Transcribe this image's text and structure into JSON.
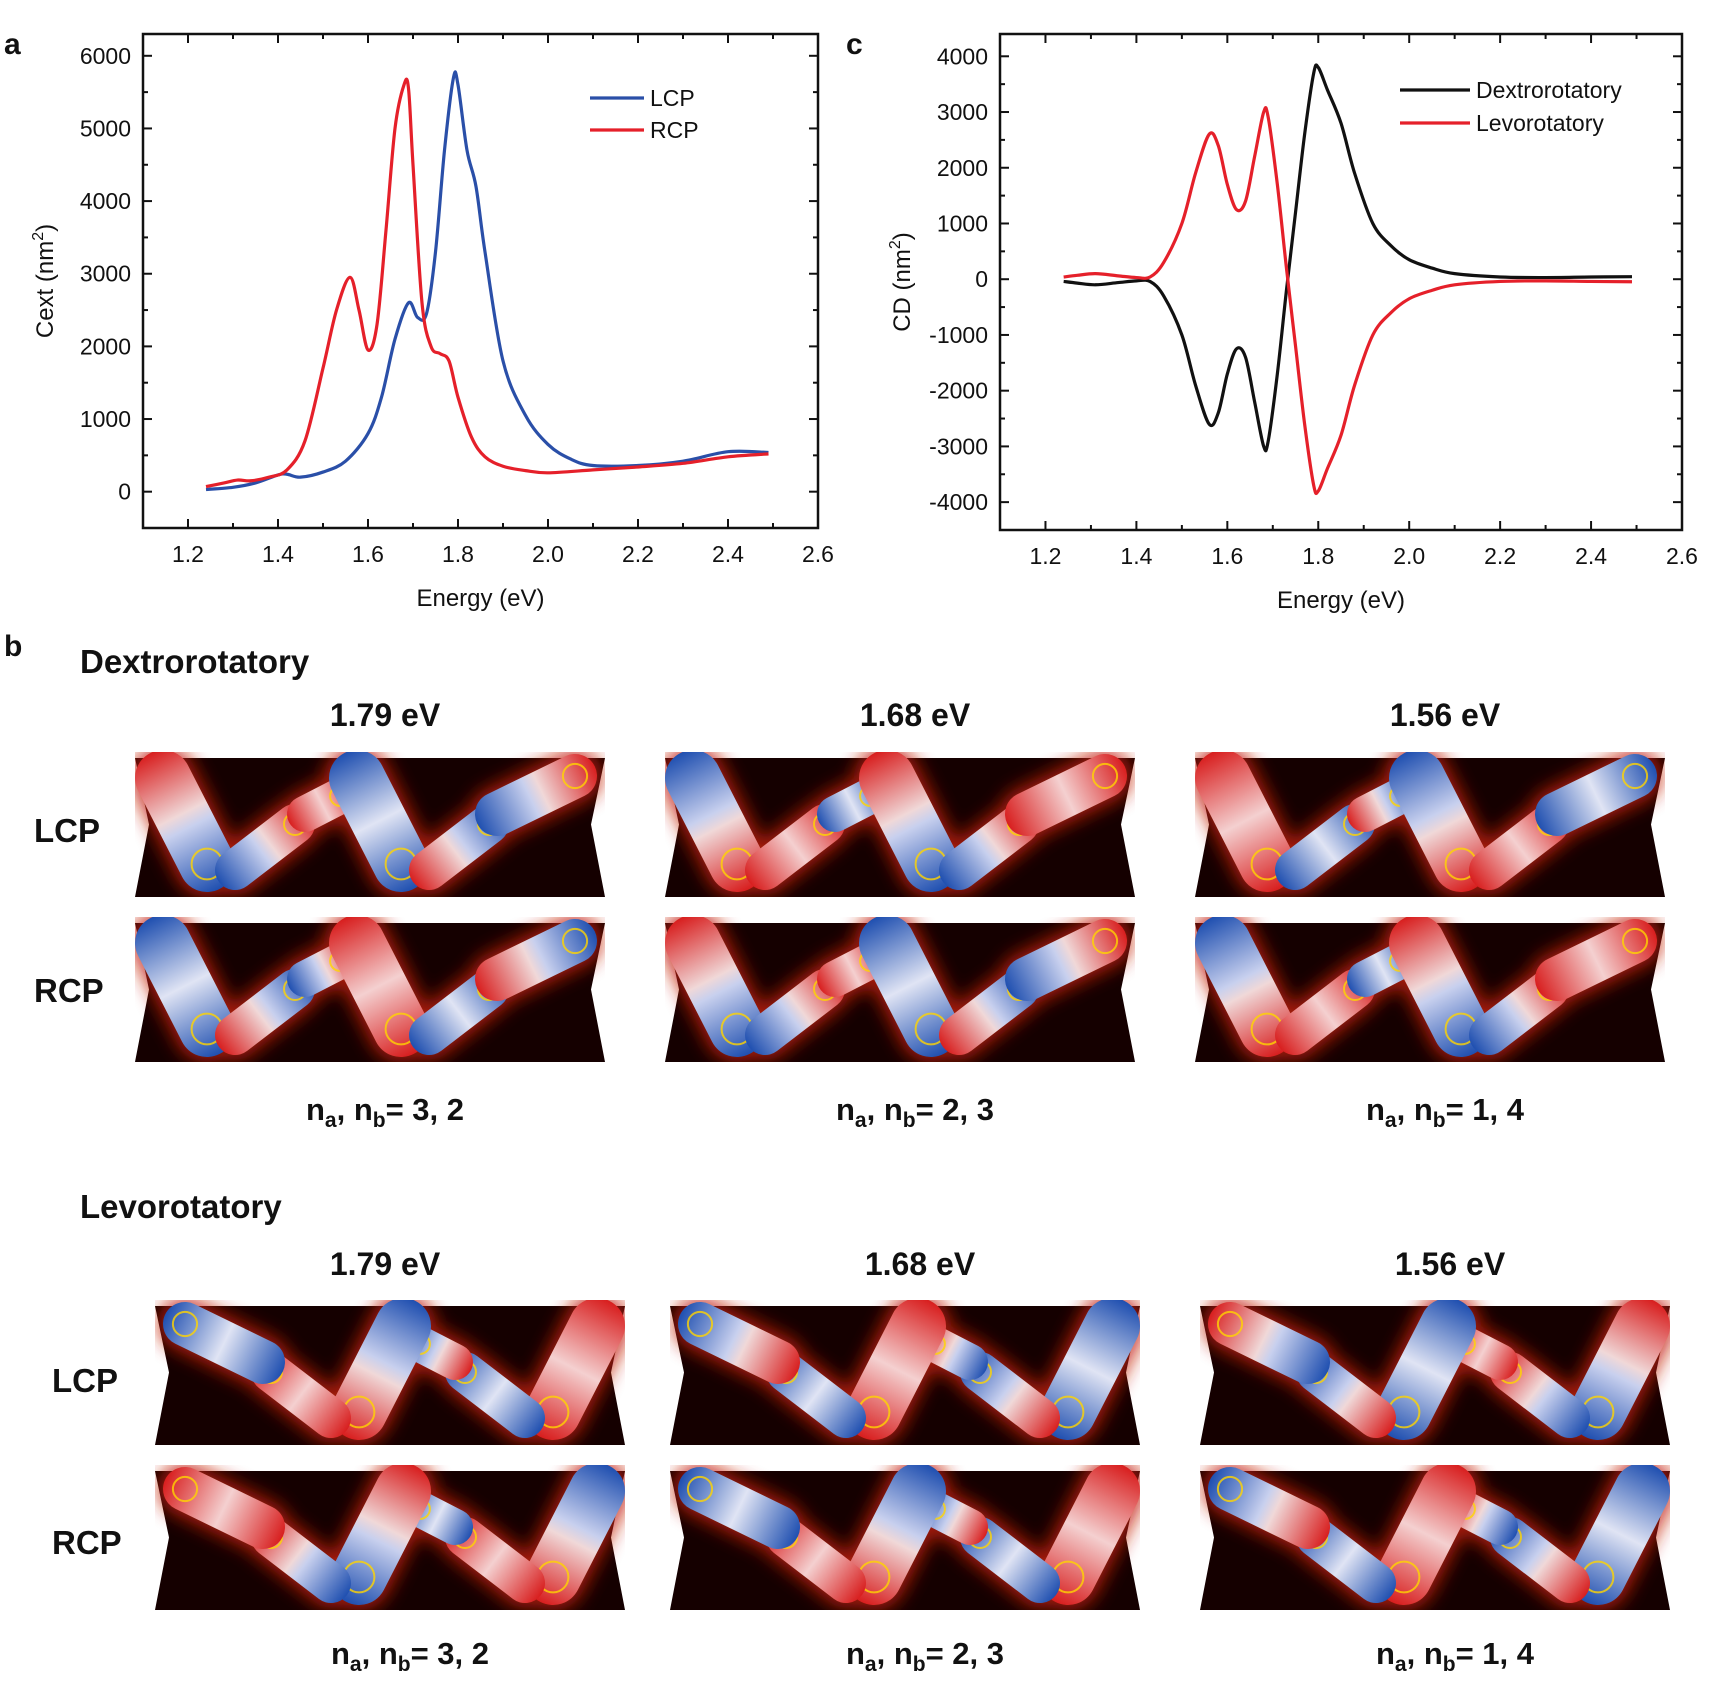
{
  "panel_letters": {
    "a": "a",
    "b": "b",
    "c": "c"
  },
  "colors": {
    "lcp": "#2a4fa8",
    "rcp": "#e5202a",
    "dextro": "#111111",
    "levo": "#e5202a",
    "field_background": "#150000",
    "rod_blue": "#1f4fb0",
    "rod_red": "#d81e1e"
  },
  "chart_data": [
    {
      "id": "a",
      "type": "line",
      "title": "",
      "xlabel": "Energy (eV)",
      "ylabel": "Cext (nm",
      "ylabel_sup": "2",
      "ylabel_tail": ")",
      "xlim": [
        1.1,
        2.6
      ],
      "ylim": [
        -500,
        6300
      ],
      "xticks": [
        1.2,
        1.4,
        1.6,
        1.8,
        2.0,
        2.2,
        2.4,
        2.6
      ],
      "xtick_labels": [
        "1.2",
        "1.4",
        "1.6",
        "1.8",
        "2.0",
        "2.2",
        "2.4",
        "2.6"
      ],
      "yticks": [
        0,
        1000,
        2000,
        3000,
        4000,
        5000,
        6000
      ],
      "ytick_labels": [
        "0",
        "1000",
        "2000",
        "3000",
        "4000",
        "5000",
        "6000"
      ],
      "legend_position": "top-right",
      "series": [
        {
          "name": "LCP",
          "color": "#2a4fa8",
          "x": [
            1.24,
            1.3,
            1.35,
            1.4,
            1.42,
            1.45,
            1.5,
            1.55,
            1.6,
            1.63,
            1.66,
            1.69,
            1.71,
            1.73,
            1.75,
            1.77,
            1.79,
            1.8,
            1.82,
            1.84,
            1.86,
            1.9,
            1.95,
            2.0,
            2.05,
            2.1,
            2.2,
            2.3,
            2.4,
            2.49
          ],
          "y": [
            30,
            60,
            120,
            230,
            240,
            200,
            270,
            420,
            800,
            1300,
            2100,
            2600,
            2400,
            2450,
            3300,
            4700,
            5700,
            5600,
            4700,
            4200,
            3300,
            1800,
            1050,
            650,
            450,
            360,
            360,
            420,
            550,
            540
          ]
        },
        {
          "name": "RCP",
          "color": "#e5202a",
          "x": [
            1.24,
            1.28,
            1.31,
            1.34,
            1.38,
            1.42,
            1.46,
            1.5,
            1.53,
            1.56,
            1.58,
            1.6,
            1.62,
            1.64,
            1.66,
            1.68,
            1.69,
            1.7,
            1.72,
            1.74,
            1.76,
            1.78,
            1.8,
            1.83,
            1.86,
            1.9,
            1.95,
            2.0,
            2.1,
            2.2,
            2.3,
            2.4,
            2.49
          ],
          "y": [
            70,
            120,
            160,
            150,
            200,
            300,
            700,
            1700,
            2500,
            2950,
            2500,
            1950,
            2300,
            3600,
            5000,
            5600,
            5550,
            4500,
            2600,
            2000,
            1900,
            1800,
            1300,
            750,
            480,
            350,
            290,
            260,
            300,
            340,
            390,
            480,
            520
          ]
        }
      ]
    },
    {
      "id": "c",
      "type": "line",
      "title": "",
      "xlabel": "Energy (eV)",
      "ylabel": "CD (nm",
      "ylabel_sup": "2",
      "ylabel_tail": ")",
      "xlim": [
        1.1,
        2.6
      ],
      "ylim": [
        -4500,
        4400
      ],
      "xticks": [
        1.2,
        1.4,
        1.6,
        1.8,
        2.0,
        2.2,
        2.4,
        2.6
      ],
      "xtick_labels": [
        "1.2",
        "1.4",
        "1.6",
        "1.8",
        "2.0",
        "2.2",
        "2.4",
        "2.6"
      ],
      "yticks": [
        -4000,
        -3000,
        -2000,
        -1000,
        0,
        1000,
        2000,
        3000,
        4000
      ],
      "ytick_labels": [
        "-4000",
        "-3000",
        "-2000",
        "-1000",
        "0",
        "1000",
        "2000",
        "3000",
        "4000"
      ],
      "legend_position": "top-right",
      "series": [
        {
          "name": "Dextrorotatory",
          "color": "#111111",
          "x": [
            1.24,
            1.27,
            1.31,
            1.36,
            1.4,
            1.43,
            1.46,
            1.5,
            1.53,
            1.56,
            1.58,
            1.6,
            1.62,
            1.64,
            1.66,
            1.68,
            1.69,
            1.71,
            1.73,
            1.75,
            1.77,
            1.79,
            1.8,
            1.82,
            1.85,
            1.88,
            1.92,
            1.96,
            2.0,
            2.05,
            2.1,
            2.2,
            2.3,
            2.4,
            2.49
          ],
          "y": [
            -40,
            -70,
            -100,
            -60,
            -30,
            -40,
            -300,
            -1000,
            -1900,
            -2600,
            -2400,
            -1700,
            -1250,
            -1400,
            -2200,
            -3000,
            -2900,
            -1700,
            -200,
            1200,
            2600,
            3700,
            3800,
            3400,
            2800,
            1900,
            1000,
            600,
            350,
            200,
            100,
            40,
            30,
            40,
            45
          ]
        },
        {
          "name": "Levorotatory",
          "color": "#e5202a",
          "x": [
            1.24,
            1.27,
            1.31,
            1.36,
            1.4,
            1.43,
            1.46,
            1.5,
            1.53,
            1.56,
            1.58,
            1.6,
            1.62,
            1.64,
            1.66,
            1.68,
            1.69,
            1.71,
            1.73,
            1.75,
            1.77,
            1.79,
            1.8,
            1.82,
            1.85,
            1.88,
            1.92,
            1.96,
            2.0,
            2.05,
            2.1,
            2.2,
            2.3,
            2.4,
            2.49
          ],
          "y": [
            40,
            70,
            100,
            60,
            30,
            40,
            300,
            1000,
            1900,
            2600,
            2400,
            1700,
            1250,
            1400,
            2200,
            3000,
            2900,
            1700,
            200,
            -1200,
            -2600,
            -3700,
            -3800,
            -3400,
            -2800,
            -1900,
            -1000,
            -600,
            -350,
            -200,
            -100,
            -40,
            -30,
            -40,
            -45
          ]
        }
      ]
    }
  ],
  "panel_b": {
    "sections": [
      {
        "title": "Dextrorotatory",
        "energies": [
          "1.79 eV",
          "1.68 eV",
          "1.56 eV"
        ],
        "rows": [
          "LCP",
          "RCP"
        ],
        "n_labels": [
          {
            "a": "a",
            "b": "b",
            "text": "= 3, 2"
          },
          {
            "a": "a",
            "b": "b",
            "text": "= 2, 3"
          },
          {
            "a": "a",
            "b": "b",
            "text": "= 1, 4"
          }
        ]
      },
      {
        "title": "Levorotatory",
        "energies": [
          "1.79 eV",
          "1.68 eV",
          "1.56 eV"
        ],
        "rows": [
          "LCP",
          "RCP"
        ],
        "n_labels": [
          {
            "a": "a",
            "b": "b",
            "text": "= 3, 2"
          },
          {
            "a": "a",
            "b": "b",
            "text": "= 2, 3"
          },
          {
            "a": "a",
            "b": "b",
            "text": "= 1, 4"
          }
        ]
      }
    ]
  }
}
